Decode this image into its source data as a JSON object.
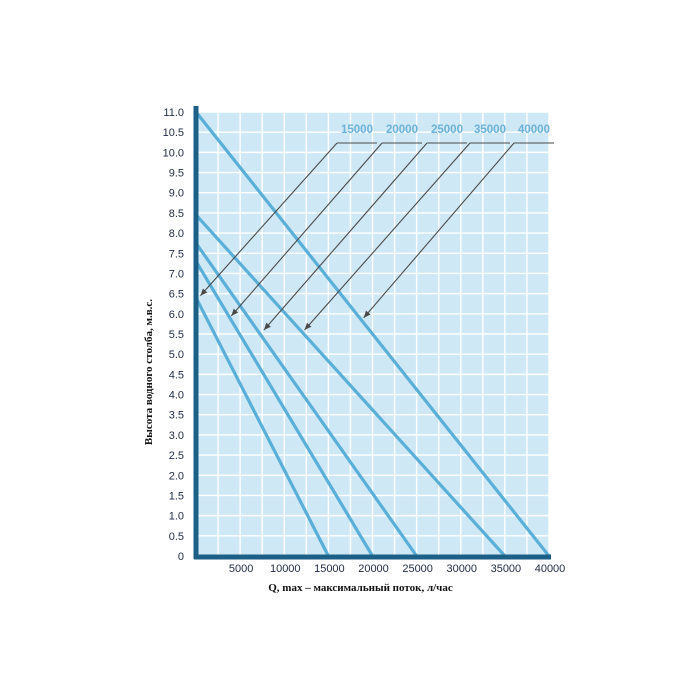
{
  "chart_data": {
    "type": "line",
    "title": "",
    "xlabel": "Q, max – максимальный поток, л/час",
    "ylabel": "Высота водного столба, м.в.с.",
    "xlim": [
      0,
      40000
    ],
    "ylim": [
      0,
      11.0
    ],
    "x_ticks": [
      "5000",
      "10000",
      "15000",
      "20000",
      "25000",
      "30000",
      "35000",
      "40000"
    ],
    "y_ticks": [
      "0",
      "0.5",
      "1.0",
      "1.5",
      "2.0",
      "2.5",
      "3.0",
      "3.5",
      "4.0",
      "4.5",
      "5.0",
      "5.5",
      "6.0",
      "6.5",
      "7.0",
      "7.5",
      "8.0",
      "8.5",
      "9.0",
      "9.5",
      "10.0",
      "10.5",
      "11.0"
    ],
    "grid": true,
    "legend_placement": "top-right",
    "series": [
      {
        "name": "15000",
        "x": [
          0,
          15000
        ],
        "y": [
          6.4,
          0
        ]
      },
      {
        "name": "20000",
        "x": [
          0,
          20000
        ],
        "y": [
          7.3,
          0
        ]
      },
      {
        "name": "25000",
        "x": [
          0,
          25000
        ],
        "y": [
          7.75,
          0
        ]
      },
      {
        "name": "35000",
        "x": [
          0,
          35000
        ],
        "y": [
          8.45,
          0
        ]
      },
      {
        "name": "40000",
        "x": [
          0,
          40000
        ],
        "y": [
          11.0,
          0
        ]
      }
    ],
    "callouts": [
      {
        "series": "15000",
        "point": [
          500,
          6.45
        ]
      },
      {
        "series": "20000",
        "point": [
          4000,
          5.95
        ]
      },
      {
        "series": "25000",
        "point": [
          7700,
          5.6
        ]
      },
      {
        "series": "35000",
        "point": [
          12300,
          5.6
        ]
      },
      {
        "series": "40000",
        "point": [
          19000,
          5.9
        ]
      }
    ],
    "colors": {
      "plot_background": "#cfe8f5",
      "grid": "#ffffff",
      "axis": "#1c5f87",
      "series_line": "#5aafd8",
      "legend_text": "#6cb2d8",
      "callout": "#4a4a4a"
    }
  }
}
